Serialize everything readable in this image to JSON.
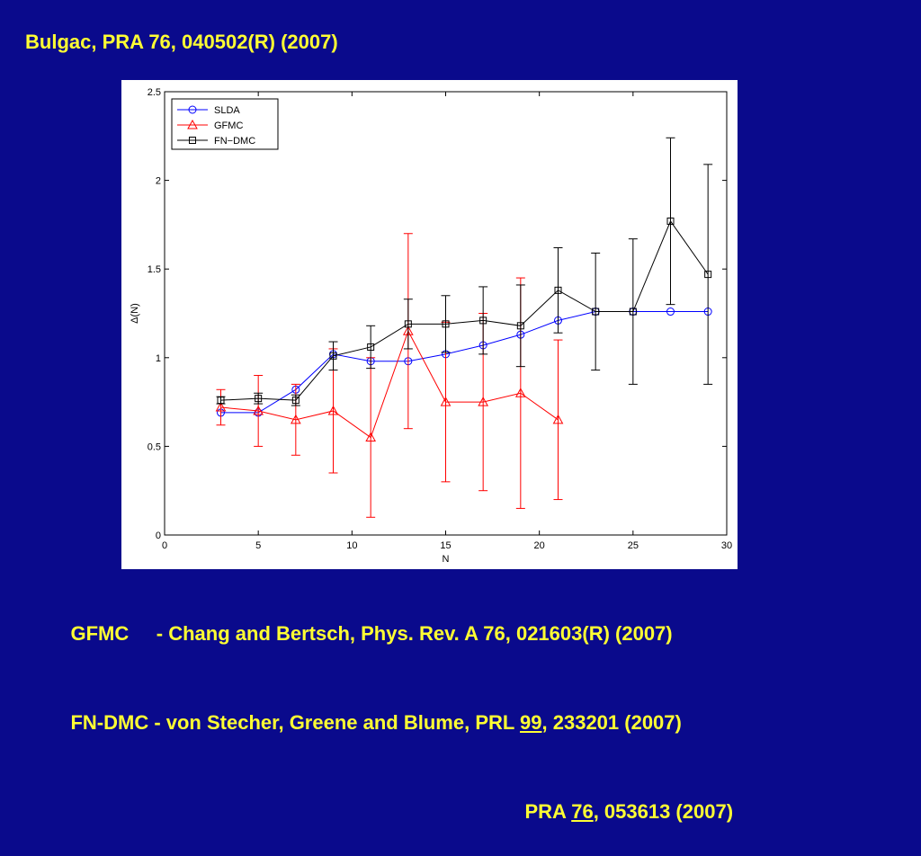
{
  "slide": {
    "title": "Bulgac, PRA  76, 040502(R) (2007)",
    "refs": [
      {
        "prefix": "GFMC     - Chang and Bertsch, Phys. Rev. A 76, 021603(R) (2007)",
        "ul": "",
        "suffix": ""
      },
      {
        "prefix": "FN-DMC - von Stecher, Greene and Blume, PRL ",
        "ul": "99",
        "suffix": ", 233201 (2007)"
      },
      {
        "prefix": "PRA ",
        "ul": "76",
        "suffix": ", 053613 (2007)"
      }
    ]
  },
  "colors": {
    "background": "#0a0a8c",
    "text": "#ffff33",
    "slda": "#0000ff",
    "gfmc": "#ff0000",
    "fndmc": "#000000"
  },
  "chart_data": {
    "type": "line",
    "title": "",
    "xlabel": "N",
    "ylabel": "Δ(N)",
    "xlim": [
      0,
      30
    ],
    "ylim": [
      0,
      2.5
    ],
    "xticks": [
      0,
      5,
      10,
      15,
      20,
      25,
      30
    ],
    "yticks": [
      0,
      0.5,
      1,
      1.5,
      2,
      2.5
    ],
    "legend_position": "top-left",
    "grid": false,
    "series": [
      {
        "name": "SLDA",
        "color": "#0000ff",
        "marker": "circle",
        "x": [
          3,
          5,
          7,
          9,
          11,
          13,
          15,
          17,
          19,
          21,
          23,
          25,
          27,
          29
        ],
        "y": [
          0.69,
          0.69,
          0.82,
          1.02,
          0.98,
          0.98,
          1.02,
          1.07,
          1.13,
          1.21,
          1.26,
          1.26,
          1.26,
          1.26
        ],
        "err": null
      },
      {
        "name": "GFMC",
        "color": "#ff0000",
        "marker": "triangle",
        "x": [
          3,
          5,
          7,
          9,
          11,
          13,
          15,
          17,
          19,
          21
        ],
        "y": [
          0.72,
          0.7,
          0.65,
          0.7,
          0.55,
          1.15,
          0.75,
          0.75,
          0.8,
          0.65
        ],
        "err": [
          0.1,
          0.2,
          0.2,
          0.35,
          0.45,
          0.55,
          0.45,
          0.5,
          0.65,
          0.45
        ]
      },
      {
        "name": "FN−DMC",
        "color": "#000000",
        "marker": "square",
        "x": [
          3,
          5,
          7,
          9,
          11,
          13,
          15,
          17,
          19,
          21,
          23,
          25,
          27,
          29
        ],
        "y": [
          0.76,
          0.77,
          0.76,
          1.01,
          1.06,
          1.19,
          1.19,
          1.21,
          1.18,
          1.38,
          1.26,
          1.26,
          1.77,
          1.47
        ],
        "err": [
          0.02,
          0.03,
          0.03,
          0.08,
          0.12,
          0.14,
          0.16,
          0.19,
          0.23,
          0.24,
          0.33,
          0.41,
          0.47,
          0.62
        ]
      }
    ]
  }
}
